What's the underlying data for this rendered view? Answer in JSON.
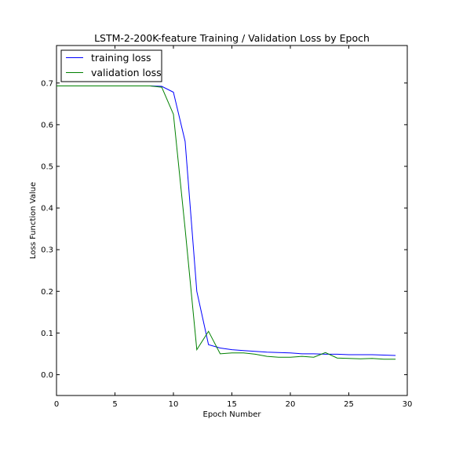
{
  "chart_data": {
    "type": "line",
    "title": "LSTM-2-200K-feature Training / Validation Loss by Epoch",
    "xlabel": "Epoch Number",
    "ylabel": "Loss Function Value",
    "xlim": [
      0,
      30
    ],
    "ylim": [
      -0.05,
      0.79
    ],
    "xticks": [
      0,
      5,
      10,
      15,
      20,
      25,
      30
    ],
    "yticks": [
      0.0,
      0.1,
      0.2,
      0.3,
      0.4,
      0.5,
      0.6,
      0.7
    ],
    "ytick_labels": [
      "0.0",
      "0.1",
      "0.2",
      "0.3",
      "0.4",
      "0.5",
      "0.6",
      "0.7"
    ],
    "grid": false,
    "legend_position": "top-left",
    "x": [
      0,
      1,
      2,
      3,
      4,
      5,
      6,
      7,
      8,
      9,
      10,
      11,
      12,
      13,
      14,
      15,
      16,
      17,
      18,
      19,
      20,
      21,
      22,
      23,
      24,
      25,
      26,
      27,
      28,
      29
    ],
    "series": [
      {
        "name": "training loss",
        "color": "#0000ff",
        "values": [
          0.693,
          0.693,
          0.693,
          0.693,
          0.693,
          0.693,
          0.693,
          0.693,
          0.693,
          0.692,
          0.678,
          0.56,
          0.2,
          0.072,
          0.064,
          0.06,
          0.058,
          0.056,
          0.054,
          0.053,
          0.052,
          0.05,
          0.05,
          0.049,
          0.049,
          0.048,
          0.048,
          0.048,
          0.047,
          0.046
        ]
      },
      {
        "name": "validation loss",
        "color": "#008000",
        "values": [
          0.693,
          0.693,
          0.693,
          0.693,
          0.693,
          0.693,
          0.693,
          0.693,
          0.693,
          0.69,
          0.625,
          0.35,
          0.06,
          0.104,
          0.05,
          0.052,
          0.052,
          0.049,
          0.044,
          0.042,
          0.042,
          0.044,
          0.042,
          0.053,
          0.04,
          0.039,
          0.038,
          0.039,
          0.037,
          0.037
        ]
      }
    ]
  }
}
